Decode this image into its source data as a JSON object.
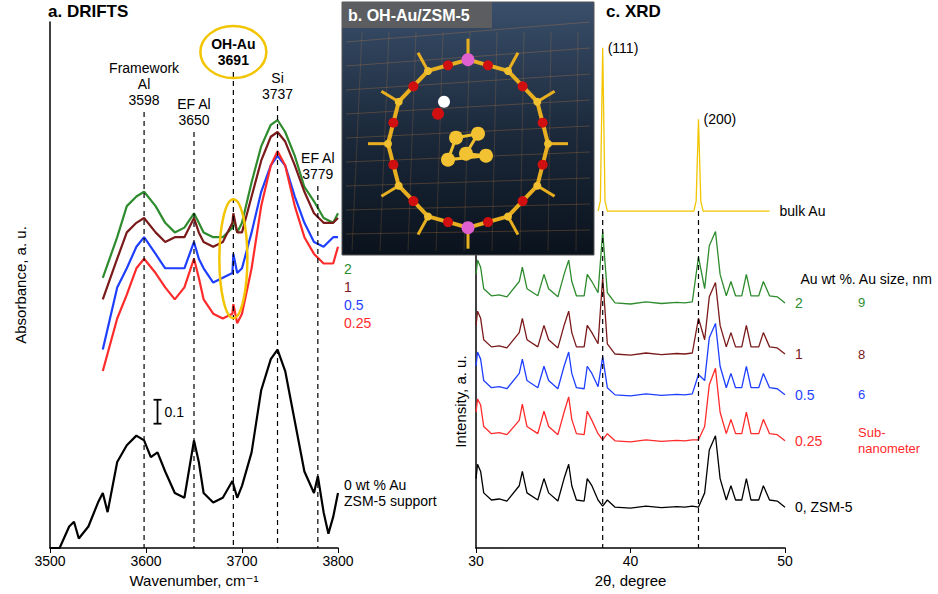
{
  "chart_data": [
    {
      "type": "line",
      "title": "a. DRIFTS",
      "xlabel": "Wavenumber, cm⁻¹",
      "ylabel": "Absorbance, a. u.",
      "xlim": [
        3500,
        3800
      ],
      "xticks": [
        3500,
        3600,
        3700,
        3800
      ],
      "ylim": [
        0,
        2.2
      ],
      "tick_labels": "x",
      "grid": false,
      "series": [
        {
          "name": "2",
          "color": "#2e8b2e",
          "x": [
            3555,
            3570,
            3580,
            3590,
            3598,
            3610,
            3620,
            3630,
            3640,
            3650,
            3655,
            3660,
            3670,
            3680,
            3690,
            3691,
            3695,
            3700,
            3710,
            3720,
            3730,
            3737,
            3745,
            3755,
            3765,
            3775,
            3785,
            3795,
            3800
          ],
          "values": [
            1.13,
            1.3,
            1.43,
            1.47,
            1.49,
            1.43,
            1.36,
            1.32,
            1.34,
            1.4,
            1.36,
            1.32,
            1.3,
            1.3,
            1.34,
            1.38,
            1.32,
            1.36,
            1.53,
            1.68,
            1.77,
            1.79,
            1.74,
            1.64,
            1.51,
            1.45,
            1.38,
            1.36,
            1.4
          ]
        },
        {
          "name": "1",
          "color": "#7a1a1a",
          "x": [
            3555,
            3570,
            3580,
            3590,
            3598,
            3610,
            3620,
            3630,
            3640,
            3650,
            3655,
            3660,
            3670,
            3680,
            3690,
            3691,
            3695,
            3700,
            3710,
            3720,
            3730,
            3737,
            3745,
            3755,
            3765,
            3775,
            3785,
            3795,
            3800
          ],
          "values": [
            1.04,
            1.21,
            1.32,
            1.36,
            1.38,
            1.32,
            1.28,
            1.3,
            1.3,
            1.38,
            1.32,
            1.28,
            1.26,
            1.28,
            1.36,
            1.4,
            1.32,
            1.32,
            1.47,
            1.62,
            1.72,
            1.74,
            1.7,
            1.6,
            1.49,
            1.4,
            1.36,
            1.36,
            1.38
          ]
        },
        {
          "name": "0.5",
          "color": "#1f3fff",
          "x": [
            3555,
            3570,
            3580,
            3590,
            3598,
            3610,
            3620,
            3630,
            3640,
            3650,
            3655,
            3660,
            3670,
            3680,
            3690,
            3691,
            3695,
            3700,
            3710,
            3720,
            3730,
            3737,
            3745,
            3755,
            3765,
            3775,
            3785,
            3795,
            3800
          ],
          "values": [
            0.83,
            1.09,
            1.17,
            1.26,
            1.3,
            1.23,
            1.17,
            1.17,
            1.17,
            1.28,
            1.21,
            1.17,
            1.11,
            1.13,
            1.15,
            1.23,
            1.15,
            1.17,
            1.32,
            1.49,
            1.6,
            1.64,
            1.6,
            1.47,
            1.36,
            1.28,
            1.26,
            1.3,
            1.3
          ]
        },
        {
          "name": "0.25",
          "color": "#ff2b2b",
          "x": [
            3555,
            3570,
            3580,
            3590,
            3598,
            3610,
            3620,
            3630,
            3640,
            3650,
            3655,
            3660,
            3670,
            3680,
            3690,
            3691,
            3695,
            3700,
            3710,
            3720,
            3730,
            3737,
            3745,
            3755,
            3765,
            3775,
            3785,
            3795,
            3800
          ],
          "values": [
            0.74,
            0.96,
            1.06,
            1.17,
            1.21,
            1.15,
            1.09,
            1.04,
            1.09,
            1.21,
            1.13,
            1.04,
            0.98,
            0.96,
            0.98,
            1.02,
            0.94,
            0.98,
            1.17,
            1.43,
            1.6,
            1.66,
            1.6,
            1.43,
            1.3,
            1.23,
            1.19,
            1.19,
            1.26
          ]
        },
        {
          "name": "0 wt % Au ZSM-5 support",
          "color": "#000000",
          "x": [
            3500,
            3510,
            3520,
            3525,
            3530,
            3540,
            3550,
            3555,
            3560,
            3570,
            3580,
            3590,
            3598,
            3605,
            3612,
            3620,
            3630,
            3640,
            3650,
            3655,
            3660,
            3670,
            3680,
            3690,
            3695,
            3700,
            3710,
            3720,
            3730,
            3737,
            3745,
            3755,
            3765,
            3775,
            3779,
            3785,
            3790,
            3795,
            3800
          ],
          "values": [
            0,
            0,
            0.09,
            0.11,
            0.04,
            0.09,
            0.19,
            0.23,
            0.15,
            0.36,
            0.43,
            0.47,
            0.45,
            0.38,
            0.4,
            0.32,
            0.23,
            0.21,
            0.45,
            0.36,
            0.23,
            0.19,
            0.21,
            0.28,
            0.21,
            0.26,
            0.4,
            0.66,
            0.79,
            0.83,
            0.74,
            0.53,
            0.32,
            0.23,
            0.3,
            0.15,
            0.06,
            0.13,
            0.23
          ]
        }
      ],
      "annotations": [
        {
          "label": "Framework Al",
          "x": 3598,
          "line_style": "dashed"
        },
        {
          "label": "EF Al",
          "x": 3650,
          "line_style": "dashed"
        },
        {
          "label": "OH-Au",
          "x": 3691,
          "line_style": "dashed",
          "color": "#f2c500"
        },
        {
          "label": "Si",
          "x": 3737,
          "line_style": "dashed"
        },
        {
          "label": "EF Al",
          "x": 3779,
          "line_style": "dashed"
        }
      ],
      "scale_bar": {
        "x": 3612,
        "y0": 0.52,
        "length": 0.1
      }
    },
    {
      "type": "line",
      "title": "c. XRD",
      "xlabel": "2θ, degree",
      "ylabel": "Intensity, a. u.",
      "xlim": [
        30,
        50
      ],
      "xticks": [
        30,
        40,
        50
      ],
      "ylim": [
        0,
        105
      ],
      "tick_labels": "x",
      "grid": false,
      "label_header": "Au wt %. Au size, nm",
      "x": [
        30,
        30.1,
        30.3,
        30.5,
        31.0,
        31.5,
        32.0,
        32.8,
        33.0,
        33.3,
        34.0,
        34.4,
        34.7,
        35.3,
        35.7,
        36.0,
        36.2,
        36.5,
        37.0,
        37.2,
        37.5,
        37.9,
        38.2,
        38.5,
        39.0,
        40.0,
        41.0,
        42.0,
        43.0,
        43.5,
        44.0,
        44.4,
        44.8,
        45.1,
        45.5,
        45.8,
        46.2,
        46.5,
        46.8,
        47.2,
        47.5,
        47.8,
        48.3,
        48.6,
        49.0,
        49.5,
        50
      ],
      "series": [
        {
          "name": "bulk Au",
          "color": "#f2c500",
          "x": [
            37.9,
            38.05,
            38.2,
            38.35,
            38.5,
            44.1,
            44.25,
            44.4,
            44.55,
            44.7,
            49.0
          ],
          "values": [
            66,
            68,
            98,
            68,
            66,
            66,
            68,
            84,
            68,
            66,
            66
          ]
        },
        {
          "name": "2",
          "color": "#2e8b2e",
          "au_size_nm": 9,
          "values": [
            53.6,
            56.4,
            55.0,
            50.8,
            49.4,
            49.6,
            49.2,
            52.2,
            55.0,
            50.8,
            49.4,
            53.6,
            50.8,
            49.2,
            53.6,
            56.4,
            52.2,
            49.4,
            49.4,
            53.6,
            52.2,
            50.0,
            62.0,
            50.0,
            48.0,
            47.8,
            48.2,
            47.9,
            48.1,
            48.0,
            48.2,
            57.0,
            50.8,
            59.2,
            62.0,
            53.6,
            49.4,
            52.2,
            49.4,
            49.4,
            53.6,
            49.4,
            49.4,
            52.2,
            49.4,
            49.2,
            48.0
          ]
        },
        {
          "name": "1",
          "color": "#7a1a1a",
          "au_size_nm": 8,
          "values": [
            43.6,
            46.4,
            45.0,
            40.8,
            39.4,
            39.6,
            39.2,
            42.2,
            45.0,
            40.8,
            39.4,
            43.6,
            40.8,
            39.2,
            43.6,
            46.4,
            42.2,
            39.4,
            39.4,
            43.6,
            42.2,
            40.0,
            53.0,
            40.0,
            38.0,
            37.8,
            38.2,
            37.9,
            38.1,
            38.0,
            38.2,
            45.0,
            40.8,
            49.2,
            52.0,
            43.6,
            39.4,
            42.2,
            39.4,
            39.4,
            43.6,
            39.4,
            39.4,
            42.2,
            39.4,
            39.2,
            38.0
          ]
        },
        {
          "name": "0.5",
          "color": "#1f3fff",
          "au_size_nm": 6,
          "values": [
            35.6,
            38.4,
            37.0,
            32.8,
            31.4,
            31.6,
            31.2,
            34.2,
            37.0,
            32.8,
            31.4,
            35.6,
            32.8,
            31.2,
            35.6,
            38.4,
            34.2,
            31.4,
            31.2,
            35.6,
            34.2,
            31.6,
            37.5,
            31.4,
            30.0,
            29.8,
            30.2,
            29.9,
            30.1,
            30.0,
            30.2,
            34.0,
            32.8,
            41.2,
            44.0,
            35.6,
            31.4,
            34.2,
            31.4,
            31.4,
            35.6,
            31.4,
            31.4,
            34.2,
            31.4,
            31.2,
            30.0
          ]
        },
        {
          "name": "0.25",
          "color": "#ff2b2b",
          "au_size_label": "Sub-nanometer",
          "values": [
            26.6,
            29.2,
            28.0,
            23.8,
            22.4,
            22.6,
            22.2,
            25.0,
            28.2,
            23.8,
            22.4,
            26.8,
            23.8,
            22.2,
            26.6,
            29.6,
            25.2,
            22.4,
            22.2,
            26.8,
            25.0,
            22.4,
            21.2,
            22.4,
            21.0,
            20.8,
            21.2,
            20.9,
            21.1,
            21.0,
            21.2,
            21.2,
            23.8,
            32.0,
            35.2,
            26.6,
            22.4,
            25.2,
            22.4,
            22.4,
            26.6,
            22.4,
            22.4,
            25.2,
            22.4,
            22.2,
            21.0
          ]
        },
        {
          "name": "0, ZSM-5",
          "color": "#000000",
          "values": [
            13.6,
            16.4,
            15.0,
            10.8,
            9.4,
            9.6,
            9.2,
            12.2,
            15.0,
            10.8,
            9.4,
            13.6,
            10.8,
            9.2,
            13.6,
            16.4,
            12.2,
            9.4,
            9.2,
            13.6,
            12.2,
            9.4,
            8.2,
            9.4,
            8.0,
            7.8,
            8.2,
            7.9,
            8.1,
            8.0,
            8.2,
            8.0,
            10.8,
            19.2,
            22.0,
            13.6,
            9.4,
            12.2,
            9.4,
            9.4,
            13.6,
            9.4,
            9.4,
            12.2,
            9.4,
            9.2,
            8.0
          ]
        }
      ],
      "annotations": [
        {
          "label": "(111)",
          "x": 38.2,
          "line_style": "dashed"
        },
        {
          "label": "(200)",
          "x": 44.4,
          "line_style": "dashed"
        }
      ]
    }
  ],
  "structure_panel": {
    "title": "b. OH-Au/ZSM-5"
  }
}
